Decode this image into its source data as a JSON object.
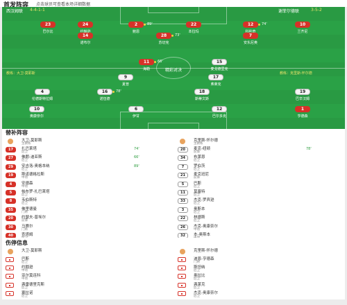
{
  "header": {
    "title": "首发阵容",
    "subtitle": "点击球员可查看本场详细数据"
  },
  "pitch": {
    "home_team": "西汉姆联",
    "home_formation": "4-4-1-1",
    "away_team": "谢菲尔德联",
    "away_formation": "3-5-2",
    "home_coach": "教练：大卫-莫耶斯",
    "away_coach": "教练：克里斯-怀尔德",
    "center_label": "精彩对决"
  },
  "players": [
    {
      "num": "23",
      "name": "巴尔比",
      "color": "red",
      "event": ""
    },
    {
      "num": "24",
      "name": "约翰逊",
      "color": "red",
      "event": ""
    },
    {
      "num": "2",
      "name": "鲍恩",
      "color": "red",
      "event": "89'"
    },
    {
      "num": "22",
      "name": "本拉玛",
      "color": "red",
      "event": ""
    },
    {
      "num": "12",
      "name": "科利奇",
      "color": "red",
      "event": "74'"
    },
    {
      "num": "10",
      "name": "兰齐尼",
      "color": "red",
      "event": ""
    },
    {
      "num": "14",
      "name": "诺布尔",
      "color": "red",
      "event": ""
    },
    {
      "num": "28",
      "name": "苏切克",
      "color": "red",
      "event": "73'"
    },
    {
      "num": "7",
      "name": "安东尼奥",
      "color": "red",
      "event": ""
    },
    {
      "num": "11",
      "name": "海勒",
      "color": "red",
      "event": "66'"
    },
    {
      "num": "15",
      "name": "麦戈德里克",
      "color": "white",
      "event": ""
    },
    {
      "num": "9",
      "name": "夏普",
      "color": "white",
      "event": ""
    },
    {
      "num": "17",
      "name": "弗莱克",
      "color": "white",
      "event": ""
    },
    {
      "num": "4",
      "name": "伦德斯特拉姆",
      "color": "white",
      "event": ""
    },
    {
      "num": "16",
      "name": "诺伍德",
      "color": "white",
      "event": "78'"
    },
    {
      "num": "18",
      "name": "斯蒂文斯",
      "color": "white",
      "event": ""
    },
    {
      "num": "19",
      "name": "巴辛汉姆",
      "color": "white",
      "event": ""
    },
    {
      "num": "10",
      "name": "奥康奈尔",
      "color": "white",
      "event": ""
    },
    {
      "num": "6",
      "name": "伊甘",
      "color": "white",
      "event": ""
    },
    {
      "num": "12",
      "name": "巴尔多克",
      "color": "white",
      "event": ""
    },
    {
      "num": "1",
      "name": "亨德森",
      "color": "red",
      "event": ""
    }
  ],
  "subs": {
    "title": "替补阵容",
    "home_manager": {
      "name": "大卫-莫耶斯",
      "role": "主教练"
    },
    "away_manager": {
      "name": "克里斯-怀尔德",
      "role": "主教练"
    },
    "home": [
      {
        "num": "17",
        "name": "扎巴莱塔",
        "pos": "后卫",
        "event": "74'"
      },
      {
        "num": "27",
        "name": "佛朗-迪亚斯",
        "pos": "后卫",
        "event": "66'"
      },
      {
        "num": "29",
        "name": "安吉洛-奥格本纳",
        "pos": "后卫",
        "event": "89'"
      },
      {
        "num": "19",
        "name": "斯诺德格拉斯",
        "pos": "中场",
        "event": ""
      },
      {
        "num": "4",
        "name": "安德森",
        "pos": "中场",
        "event": ""
      },
      {
        "num": "5",
        "name": "帕布罗-扎巴莱塔",
        "pos": "后卫",
        "event": ""
      },
      {
        "num": "8",
        "name": "韦伯斯特",
        "pos": "后卫",
        "event": ""
      },
      {
        "num": "35",
        "name": "佛里德曼",
        "pos": "门将",
        "event": ""
      },
      {
        "num": "20",
        "name": "约瑟夫-普埃尔",
        "pos": "前锋",
        "event": ""
      },
      {
        "num": "30",
        "name": "马赛尔",
        "pos": "门将",
        "event": ""
      },
      {
        "num": "40",
        "name": "查塔姆",
        "pos": "后卫",
        "event": ""
      }
    ],
    "away": [
      {
        "num": "20",
        "name": "麦克-纽顿",
        "pos": "前锋",
        "event": "78'"
      },
      {
        "num": "34",
        "name": "布莱恩",
        "pos": "后卫",
        "event": ""
      },
      {
        "num": "7",
        "name": "罗伯茨",
        "pos": "后卫",
        "event": ""
      },
      {
        "num": "21",
        "name": "麦克班尼",
        "pos": "前锋",
        "event": ""
      },
      {
        "num": "5",
        "name": "巴斯",
        "pos": "后卫",
        "event": ""
      },
      {
        "num": "11",
        "name": "莫塞特",
        "pos": "后卫",
        "event": ""
      },
      {
        "num": "33",
        "name": "杰克-罗宾逊",
        "pos": "后卫",
        "event": ""
      },
      {
        "num": "3",
        "name": "奥斯本",
        "pos": "后卫",
        "event": ""
      },
      {
        "num": "22",
        "name": "林德斯",
        "pos": "后卫",
        "event": ""
      },
      {
        "num": "26",
        "name": "杰克-奥康奈尔",
        "pos": "中场",
        "event": ""
      },
      {
        "num": "32",
        "name": "本-奥斯本",
        "pos": "中场",
        "event": ""
      }
    ]
  },
  "injuries": {
    "title": "伤停信息",
    "home_manager": {
      "name": "大卫-莫耶斯"
    },
    "away_manager": {
      "name": "克里斯-怀尔德"
    },
    "home": [
      {
        "name": "巴斯",
        "pos": "后卫"
      },
      {
        "name": "约翰逊",
        "pos": "中场"
      },
      {
        "name": "亚尔莫连科",
        "pos": "中场"
      },
      {
        "name": "弗雷德里克斯",
        "pos": "后卫"
      },
      {
        "name": "塞拉诺",
        "pos": "后卫"
      }
    ],
    "away": [
      {
        "name": "迪恩-亨德森",
        "pos": "门将"
      },
      {
        "name": "斯坦纳",
        "pos": "后卫"
      },
      {
        "name": "奥拉比",
        "pos": "后卫"
      },
      {
        "name": "弗莱克",
        "pos": "后卫"
      },
      {
        "name": "杰克-奥康奈尔",
        "pos": "后卫"
      }
    ]
  }
}
